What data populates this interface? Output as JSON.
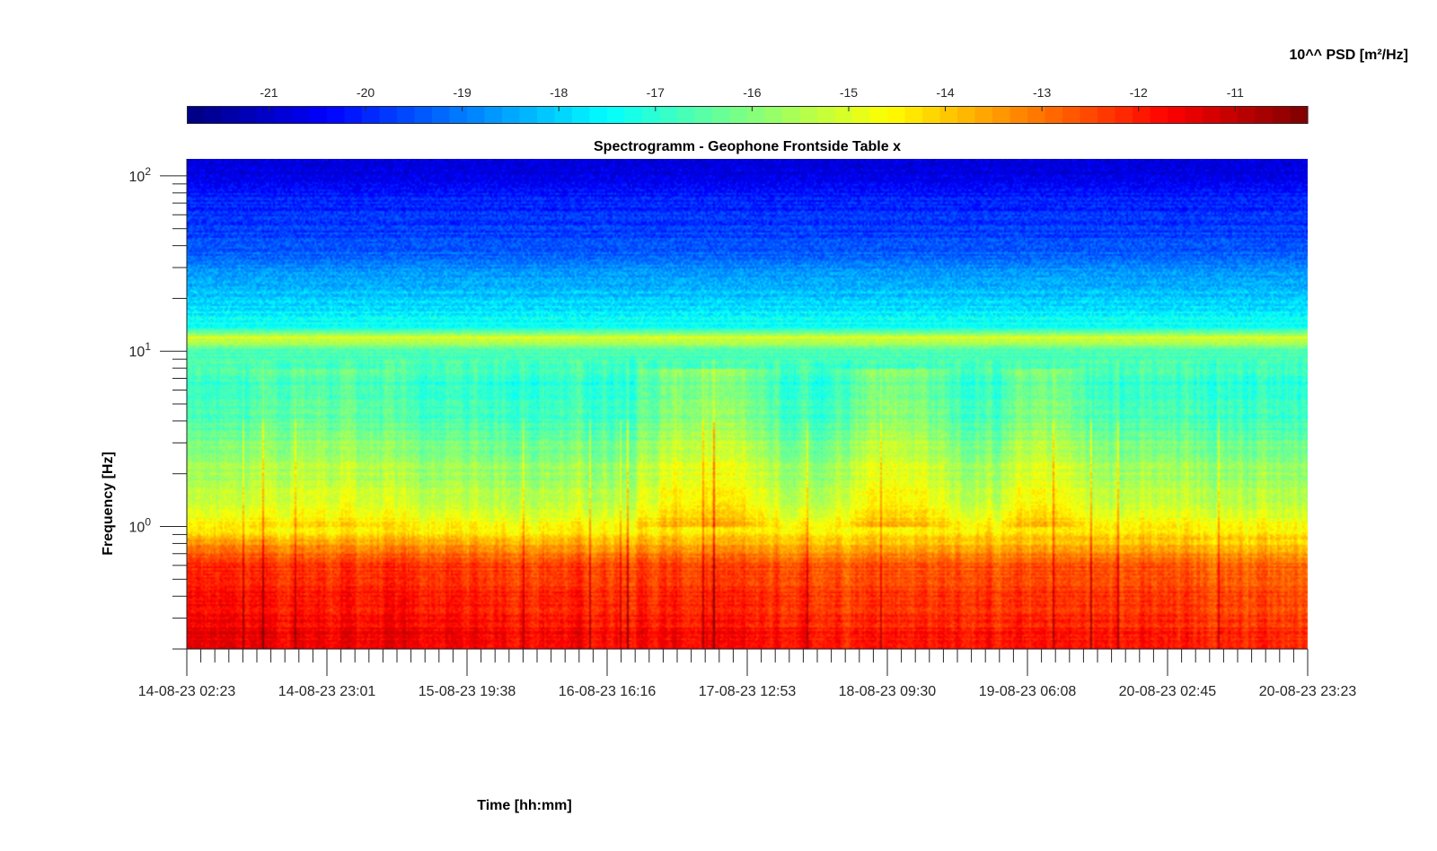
{
  "chart_data": {
    "type": "heatmap",
    "title": "Spectrogramm - Geophone Frontside Table x",
    "xlabel": "Time [hh:mm]",
    "ylabel": "Frequency [Hz]",
    "colorbar_label": "10^^ PSD [m²/Hz]",
    "x_ticks": [
      "14-08-23 02:23",
      "14-08-23 23:01",
      "15-08-23 19:38",
      "16-08-23 16:16",
      "17-08-23 12:53",
      "18-08-23 09:30",
      "19-08-23 06:08",
      "20-08-23 02:45",
      "20-08-23 23:23"
    ],
    "x_range": [
      "14-08-23 02:23",
      "20-08-23 23:23"
    ],
    "y_scale": "log",
    "y_range": [
      0.2,
      125
    ],
    "y_ticks": [
      {
        "value": 1,
        "base": "10",
        "exp": "0"
      },
      {
        "value": 10,
        "base": "10",
        "exp": "1"
      },
      {
        "value": 100,
        "base": "10",
        "exp": "2"
      }
    ],
    "colorbar_ticks": [
      -21,
      -20,
      -19,
      -18,
      -17,
      -16,
      -15,
      -14,
      -13,
      -12,
      -11
    ],
    "colorbar_range": [
      -21.85,
      -10.25
    ],
    "colormap": "jet",
    "colorbar_placement": "top",
    "grid": false,
    "profile": [
      {
        "f": 0.2,
        "v": -11.4
      },
      {
        "f": 0.4,
        "v": -11.9
      },
      {
        "f": 0.6,
        "v": -12.2
      },
      {
        "f": 0.8,
        "v": -13.4
      },
      {
        "f": 1.0,
        "v": -14.6
      },
      {
        "f": 1.5,
        "v": -15.5
      },
      {
        "f": 2.5,
        "v": -15.9
      },
      {
        "f": 4.0,
        "v": -16.7
      },
      {
        "f": 6.0,
        "v": -17.0
      },
      {
        "f": 10.0,
        "v": -16.6
      },
      {
        "f": 12.0,
        "v": -15.0
      },
      {
        "f": 13.5,
        "v": -17.2
      },
      {
        "f": 20.0,
        "v": -18.1
      },
      {
        "f": 28.0,
        "v": -18.6
      },
      {
        "f": 40.0,
        "v": -19.6
      },
      {
        "f": 70.0,
        "v": -20.0
      },
      {
        "f": 125.0,
        "v": -20.9
      }
    ],
    "activity_bands": [
      {
        "from": "16-08-23 22:00",
        "to": "17-08-23 16:00",
        "level": 1.0
      },
      {
        "from": "18-08-23 03:00",
        "to": "18-08-23 18:00",
        "level": 1.0
      },
      {
        "from": "19-08-23 03:00",
        "to": "19-08-23 14:00",
        "level": 0.8
      },
      {
        "from": "14-08-23 12:00",
        "to": "15-08-23 08:00",
        "level": 0.45
      }
    ]
  }
}
